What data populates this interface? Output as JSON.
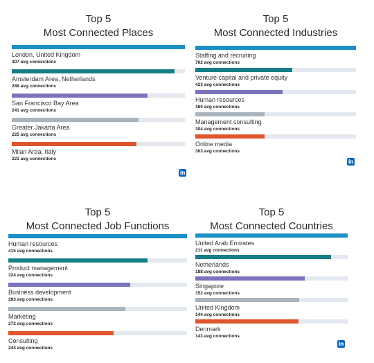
{
  "chart_data": [
    {
      "type": "bar",
      "title_line1": "Top 5",
      "title_line2": "Most Connected Places",
      "unit": "avg connections",
      "xlim": [
        0,
        307
      ],
      "categories": [
        "London, United Kingdom",
        "Amsterdam Area, Netherlands",
        "San Francisco Bay Area",
        "Greater Jakarta Area",
        "Milan Area, Italy"
      ],
      "values": [
        307,
        288,
        241,
        225,
        221
      ],
      "colors": [
        "#1b8fc6",
        "#167e86",
        "#7b74bd",
        "#a9b4bd",
        "#e0552b"
      ]
    },
    {
      "type": "bar",
      "title_line1": "Top 5",
      "title_line2": "Most Connected Industries",
      "unit": "avg connections",
      "xlim": [
        0,
        702
      ],
      "categories": [
        "Staffing and recruiting",
        "Venture capital and private equity",
        "Human resources",
        "Management consulting",
        "Online media"
      ],
      "values": [
        702,
        423,
        380,
        304,
        303
      ],
      "colors": [
        "#1b8fc6",
        "#167e86",
        "#7b74bd",
        "#a9b4bd",
        "#e0552b"
      ]
    },
    {
      "type": "bar",
      "title_line1": "Top 5",
      "title_line2": "Most Connected Job Functions",
      "unit": "avg connections",
      "xlim": [
        0,
        415
      ],
      "categories": [
        "Human resources",
        "Product management",
        "Business development",
        "Marketing",
        "Consulting"
      ],
      "values": [
        415,
        324,
        283,
        272,
        244
      ],
      "colors": [
        "#1b8fc6",
        "#167e86",
        "#7b74bd",
        "#a9b4bd",
        "#e0552b"
      ]
    },
    {
      "type": "bar",
      "title_line1": "Top 5",
      "title_line2": "Most Connected Countries",
      "unit": "avg connections",
      "xlim": [
        0,
        211
      ],
      "categories": [
        "United Arab Emirates",
        "Netherlands",
        "Singapore",
        "United Kingdom",
        "Denmark"
      ],
      "values": [
        211,
        188,
        152,
        144,
        143
      ],
      "colors": [
        "#1b8fc6",
        "#167e86",
        "#7b74bd",
        "#a9b4bd",
        "#e0552b"
      ]
    }
  ],
  "logo": {
    "text": "in",
    "color": "#0a66c2"
  }
}
